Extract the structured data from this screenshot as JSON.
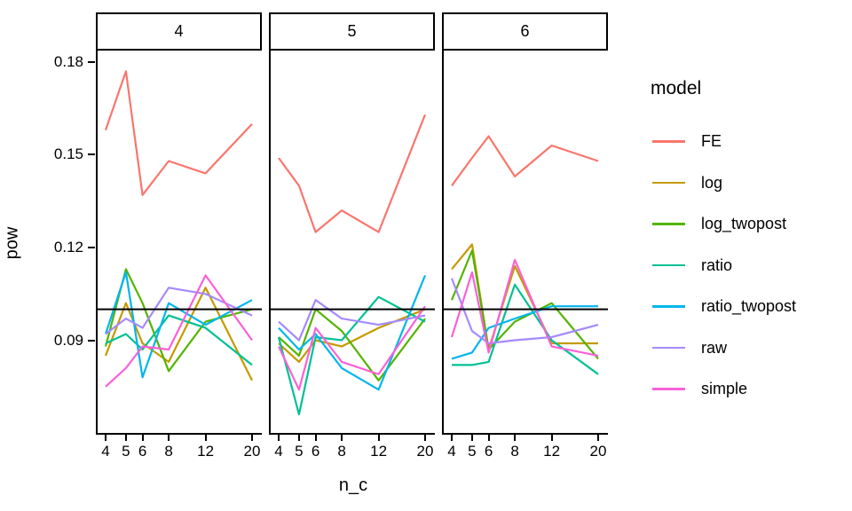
{
  "figure": {
    "ylabel": "pow",
    "xlabel": "n_c",
    "y_tick_labels": [
      "0.18",
      "0.15",
      "0.12",
      "0.09"
    ]
  },
  "chart_data": {
    "type": "line",
    "title": "",
    "description": "Faceted line chart (ggplot style), power (pow) vs number of controls (n_c), one panel per facet value 4/5/6, seven model series, horizontal reference line at 0.10",
    "facet_values": [
      "4",
      "5",
      "6"
    ],
    "x": [
      4,
      5,
      6,
      8,
      12,
      20
    ],
    "x_scale": "log",
    "xlabel": "n_c",
    "ylabel": "pow",
    "ylim": [
      0.0594,
      0.1837
    ],
    "y_ticks": [
      0.18,
      0.15,
      0.12,
      0.09
    ],
    "reference_line_y": 0.1,
    "grid": false,
    "legend_title": "model",
    "legend_position": "right",
    "axis_color": "#000000",
    "series": [
      {
        "name": "FE",
        "color": "#F8766D",
        "values_by_facet": {
          "4": [
            0.158,
            0.177,
            0.137,
            0.148,
            0.144,
            0.16
          ],
          "5": [
            0.149,
            0.14,
            0.125,
            0.132,
            0.125,
            0.163
          ],
          "6": [
            0.14,
            0.149,
            0.156,
            0.143,
            0.153,
            0.148
          ]
        }
      },
      {
        "name": "log",
        "color": "#C49A00",
        "values_by_facet": {
          "4": [
            0.085,
            0.102,
            0.089,
            0.083,
            0.107,
            0.077
          ],
          "5": [
            0.089,
            0.083,
            0.09,
            0.088,
            0.094,
            0.1
          ],
          "6": [
            0.113,
            0.121,
            0.087,
            0.114,
            0.089,
            0.089
          ]
        }
      },
      {
        "name": "log_twopost",
        "color": "#53B400",
        "values_by_facet": {
          "4": [
            0.088,
            0.113,
            0.102,
            0.08,
            0.096,
            0.1
          ],
          "5": [
            0.091,
            0.085,
            0.1,
            0.093,
            0.077,
            0.097
          ],
          "6": [
            0.103,
            0.119,
            0.087,
            0.096,
            0.102,
            0.084
          ]
        }
      },
      {
        "name": "ratio",
        "color": "#00C094",
        "values_by_facet": {
          "4": [
            0.089,
            0.092,
            0.087,
            0.098,
            0.094,
            0.082
          ],
          "5": [
            0.091,
            0.066,
            0.091,
            0.09,
            0.104,
            0.096
          ],
          "6": [
            0.082,
            0.082,
            0.083,
            0.108,
            0.09,
            0.079
          ]
        }
      },
      {
        "name": "ratio_twopost",
        "color": "#00B6EB",
        "values_by_facet": {
          "4": [
            0.092,
            0.112,
            0.078,
            0.102,
            0.095,
            0.103
          ],
          "5": [
            0.094,
            0.087,
            0.092,
            0.081,
            0.074,
            0.111
          ],
          "6": [
            0.084,
            0.086,
            0.094,
            0.097,
            0.101,
            0.101
          ]
        }
      },
      {
        "name": "raw",
        "color": "#A58AFF",
        "values_by_facet": {
          "4": [
            0.092,
            0.097,
            0.094,
            0.107,
            0.105,
            0.098
          ],
          "5": [
            0.096,
            0.09,
            0.103,
            0.097,
            0.095,
            0.098
          ],
          "6": [
            0.11,
            0.093,
            0.089,
            0.09,
            0.091,
            0.095
          ]
        }
      },
      {
        "name": "simple",
        "color": "#FB61D7",
        "values_by_facet": {
          "4": [
            0.075,
            0.081,
            0.088,
            0.087,
            0.111,
            0.09
          ],
          "5": [
            0.088,
            0.074,
            0.094,
            0.083,
            0.079,
            0.101
          ],
          "6": [
            0.091,
            0.112,
            0.086,
            0.116,
            0.088,
            0.085
          ]
        }
      }
    ]
  }
}
